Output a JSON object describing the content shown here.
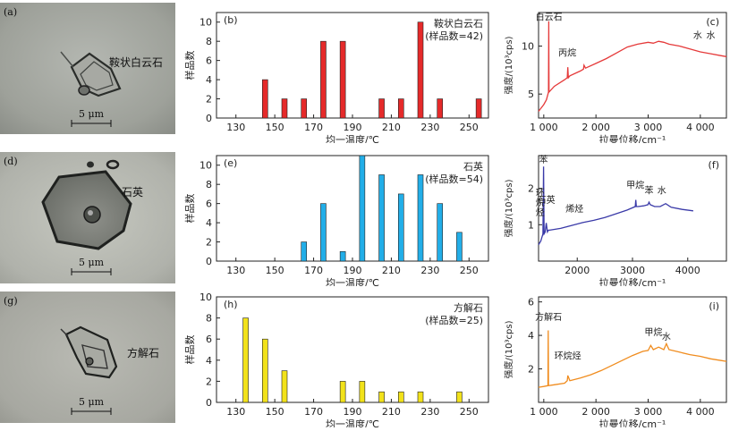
{
  "photos": [
    {
      "label": "(a)",
      "mineral": "鞍状白云石",
      "scale": "5 μm"
    },
    {
      "label": "(d)",
      "mineral": "石英",
      "scale": "5 μm"
    },
    {
      "label": "(g)",
      "mineral": "方解石",
      "scale": "5 μm"
    }
  ],
  "chart_data": [
    {
      "type": "bar",
      "panel": "(b)",
      "title": "鞍状白云石",
      "subtitle": "(样品数=42)",
      "xlabel": "均一温度/℃",
      "ylabel": "样品数",
      "color": "#e52a2a",
      "xlim": [
        120,
        260
      ],
      "ylim": [
        0,
        11
      ],
      "xticks": [
        130,
        150,
        170,
        190,
        210,
        230,
        250
      ],
      "yticks": [
        0,
        2,
        4,
        6,
        8,
        10
      ],
      "x": [
        145,
        155,
        165,
        175,
        185,
        205,
        215,
        225,
        235,
        255
      ],
      "values": [
        4,
        2,
        2,
        8,
        8,
        2,
        2,
        10,
        2,
        2
      ]
    },
    {
      "type": "bar",
      "panel": "(e)",
      "title": "石英",
      "subtitle": "(样品数=54)",
      "xlabel": "均一温度/℃",
      "ylabel": "样品数",
      "color": "#22aee8",
      "xlim": [
        120,
        260
      ],
      "ylim": [
        0,
        11
      ],
      "xticks": [
        130,
        150,
        170,
        190,
        210,
        230,
        250
      ],
      "yticks": [
        0,
        2,
        4,
        6,
        8,
        10
      ],
      "x": [
        165,
        175,
        185,
        195,
        205,
        215,
        225,
        235,
        245
      ],
      "values": [
        2,
        6,
        1,
        11,
        9,
        7,
        9,
        6,
        3
      ]
    },
    {
      "type": "bar",
      "panel": "(h)",
      "title": "方解石",
      "subtitle": "(样品数=25)",
      "xlabel": "均一温度/℃",
      "ylabel": "样品数",
      "color": "#f2e21a",
      "xlim": [
        120,
        260
      ],
      "ylim": [
        0,
        10
      ],
      "xticks": [
        130,
        150,
        170,
        190,
        210,
        230,
        250
      ],
      "yticks": [
        0,
        2,
        4,
        6,
        8,
        10
      ],
      "x": [
        135,
        145,
        155,
        185,
        195,
        205,
        215,
        225,
        245
      ],
      "values": [
        8,
        6,
        3,
        2,
        2,
        1,
        1,
        1,
        1
      ]
    },
    {
      "type": "line",
      "panel": "(c)",
      "xlabel": "拉曼位移/cm⁻¹",
      "ylabel": "强度/(10³cps)",
      "color": "#e53a3a",
      "xlim": [
        900,
        4500
      ],
      "ylim": [
        2.5,
        13.5
      ],
      "xticks": [
        1000,
        2000,
        3000,
        4000
      ],
      "xtick_labels": [
        "1 000",
        "2 000",
        "3 000",
        "4 000"
      ],
      "yticks": [
        5,
        10
      ],
      "x": [
        900,
        1000,
        1050,
        1090,
        1095,
        1100,
        1200,
        1400,
        1450,
        1460,
        1470,
        1500,
        1700,
        1760,
        1770,
        1800,
        2000,
        2200,
        2400,
        2600,
        2800,
        3000,
        3100,
        3200,
        3300,
        3400,
        3600,
        3800,
        4000,
        4200,
        4400,
        4500
      ],
      "y": [
        3.2,
        3.9,
        4.4,
        5.2,
        12.6,
        5.2,
        5.8,
        6.5,
        6.7,
        7.8,
        6.7,
        6.9,
        7.4,
        7.6,
        8.0,
        7.7,
        8.2,
        8.7,
        9.3,
        9.9,
        10.2,
        10.4,
        10.3,
        10.5,
        10.4,
        10.2,
        10.0,
        9.7,
        9.4,
        9.2,
        9.0,
        8.9
      ],
      "annotations": [
        {
          "text": "白云石",
          "x": 1100,
          "y": 12.7
        },
        {
          "text": "丙烷",
          "x": 1450,
          "y": 9.0
        },
        {
          "text": "水",
          "x": 3950,
          "y": 10.8
        },
        {
          "text": "水",
          "x": 4200,
          "y": 10.8
        }
      ]
    },
    {
      "type": "line",
      "panel": "(f)",
      "xlabel": "拉曼位移/cm⁻¹",
      "ylabel": "强度/(10³cps)",
      "color": "#3a3aa8",
      "xlim": [
        1300,
        4700
      ],
      "ylim": [
        0.0,
        2.9
      ],
      "xticks": [
        2000,
        3000,
        4000
      ],
      "xtick_labels": [
        "2000",
        "3000",
        "4000"
      ],
      "yticks": [
        1,
        2
      ],
      "x": [
        1300,
        1340,
        1360,
        1380,
        1390,
        1400,
        1420,
        1440,
        1460,
        1480,
        1500,
        1700,
        1900,
        2100,
        2300,
        2500,
        2700,
        2900,
        3050,
        3060,
        3070,
        3100,
        3200,
        3280,
        3300,
        3320,
        3400,
        3500,
        3600,
        3700,
        3900,
        4100
      ],
      "y": [
        0.45,
        0.55,
        0.65,
        0.75,
        2.6,
        0.75,
        0.8,
        1.05,
        0.8,
        0.85,
        0.85,
        0.9,
        0.98,
        1.06,
        1.12,
        1.2,
        1.3,
        1.4,
        1.5,
        1.68,
        1.5,
        1.5,
        1.52,
        1.55,
        1.62,
        1.55,
        1.5,
        1.5,
        1.58,
        1.48,
        1.42,
        1.38
      ],
      "annotations": [
        {
          "text": "苯",
          "x": 1390,
          "y": 2.7
        },
        {
          "text": "环烷烃",
          "x": 1330,
          "y": 1.8
        },
        {
          "text": "石英",
          "x": 1440,
          "y": 1.6
        },
        {
          "text": "烯烃",
          "x": 1950,
          "y": 1.35
        },
        {
          "text": "甲烷",
          "x": 3050,
          "y": 2.0
        },
        {
          "text": "苯",
          "x": 3300,
          "y": 1.85
        },
        {
          "text": "水",
          "x": 3530,
          "y": 1.85
        }
      ]
    },
    {
      "type": "line",
      "panel": "(i)",
      "xlabel": "拉曼位移/cm⁻¹",
      "ylabel": "强度/(10³cps)",
      "color": "#f08c1e",
      "xlim": [
        900,
        4500
      ],
      "ylim": [
        0,
        6.3
      ],
      "xticks": [
        1000,
        2000,
        3000,
        4000
      ],
      "xtick_labels": [
        "1 000",
        "2 000",
        "3 000",
        "4 000"
      ],
      "yticks": [
        2,
        4,
        6
      ],
      "x": [
        900,
        1000,
        1080,
        1085,
        1090,
        1200,
        1400,
        1450,
        1460,
        1500,
        1700,
        1900,
        2100,
        2300,
        2500,
        2700,
        2900,
        3000,
        3050,
        3100,
        3200,
        3300,
        3350,
        3400,
        3600,
        3800,
        4000,
        4200,
        4400,
        4500
      ],
      "y": [
        0.9,
        0.95,
        1.0,
        4.3,
        1.0,
        1.05,
        1.15,
        1.3,
        1.6,
        1.3,
        1.45,
        1.65,
        1.9,
        2.2,
        2.5,
        2.8,
        3.05,
        3.1,
        3.4,
        3.15,
        3.3,
        3.15,
        3.5,
        3.15,
        3.0,
        2.85,
        2.75,
        2.6,
        2.5,
        2.45
      ],
      "annotations": [
        {
          "text": "方解石",
          "x": 1090,
          "y": 4.9
        },
        {
          "text": "环烷烃",
          "x": 1460,
          "y": 2.6
        },
        {
          "text": "甲烷",
          "x": 3100,
          "y": 4.0
        },
        {
          "text": "水",
          "x": 3350,
          "y": 3.75
        }
      ]
    }
  ]
}
